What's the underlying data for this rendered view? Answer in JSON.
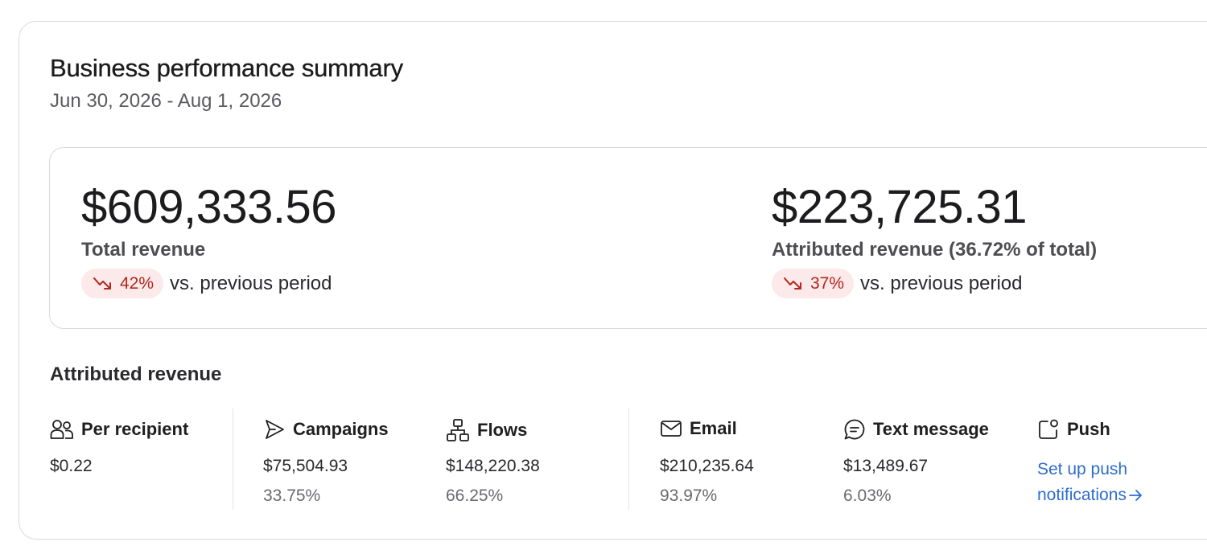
{
  "header": {
    "title": "Business performance summary",
    "date_range": "Jun 30, 2026 - Aug 1, 2026"
  },
  "kpis": [
    {
      "value": "$609,333.56",
      "label": "Total revenue",
      "change": "42%",
      "change_direction": "down",
      "change_suffix": "vs. previous period"
    },
    {
      "value": "$223,725.31",
      "label": "Attributed revenue (36.72% of total)",
      "change": "37%",
      "change_direction": "down",
      "change_suffix": "vs. previous period"
    }
  ],
  "attributed": {
    "section_title": "Attributed revenue",
    "per_recipient": {
      "icon": "people-icon",
      "label": "Per recipient",
      "value": "$0.22"
    },
    "campaigns": {
      "icon": "send-icon",
      "label": "Campaigns",
      "value": "$75,504.93",
      "pct": "33.75%"
    },
    "flows": {
      "icon": "flow-icon",
      "label": "Flows",
      "value": "$148,220.38",
      "pct": "66.25%"
    },
    "email": {
      "icon": "envelope-icon",
      "label": "Email",
      "value": "$210,235.64",
      "pct": "93.97%"
    },
    "text_message": {
      "icon": "chat-bubble-icon",
      "label": "Text message",
      "value": "$13,489.67",
      "pct": "6.03%"
    },
    "push": {
      "icon": "push-notification-icon",
      "label": "Push",
      "link": "Set up push notifications"
    }
  },
  "colors": {
    "negative_text": "#b3261e",
    "negative_bg": "#fce9e9",
    "link": "#2e6cd0",
    "border": "#d9d9dc"
  }
}
